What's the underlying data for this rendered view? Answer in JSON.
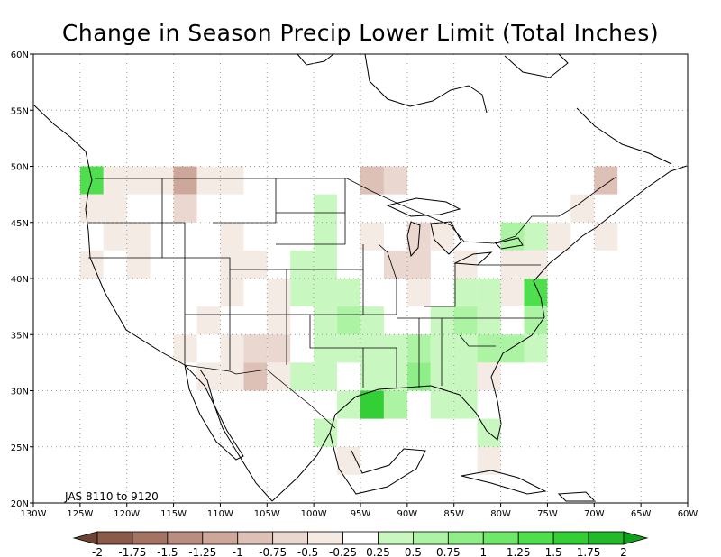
{
  "title": "Change in Season Precip Lower Limit (Total Inches)",
  "period_label": "JAS 8110 to 9120",
  "map": {
    "lon_range": [
      -130,
      -60
    ],
    "lat_range": [
      20,
      60
    ],
    "lon_ticks": [
      {
        "v": -130,
        "label": "130W"
      },
      {
        "v": -125,
        "label": "125W"
      },
      {
        "v": -120,
        "label": "120W"
      },
      {
        "v": -115,
        "label": "115W"
      },
      {
        "v": -110,
        "label": "110W"
      },
      {
        "v": -105,
        "label": "105W"
      },
      {
        "v": -100,
        "label": "100W"
      },
      {
        "v": -95,
        "label": "95W"
      },
      {
        "v": -90,
        "label": "90W"
      },
      {
        "v": -85,
        "label": "85W"
      },
      {
        "v": -80,
        "label": "80W"
      },
      {
        "v": -75,
        "label": "75W"
      },
      {
        "v": -70,
        "label": "70W"
      },
      {
        "v": -65,
        "label": "65W"
      },
      {
        "v": -60,
        "label": "60W"
      }
    ],
    "lat_ticks": [
      {
        "v": 20,
        "label": "20N"
      },
      {
        "v": 25,
        "label": "25N"
      },
      {
        "v": 30,
        "label": "30N"
      },
      {
        "v": 35,
        "label": "35N"
      },
      {
        "v": 40,
        "label": "40N"
      },
      {
        "v": 45,
        "label": "45N"
      },
      {
        "v": 50,
        "label": "50N"
      },
      {
        "v": 55,
        "label": "55N"
      },
      {
        "v": 60,
        "label": "60N"
      }
    ],
    "gridlines": "dotted",
    "cell_size_deg": 2.5
  },
  "colorbar": {
    "labels": [
      "-2",
      "-1.75",
      "-1.5",
      "-1.25",
      "-1",
      "-0.75",
      "-0.5",
      "-0.25",
      "0.25",
      "0.5",
      "0.75",
      "1",
      "1.25",
      "1.5",
      "1.75",
      "2"
    ],
    "colors": [
      "#6b4436",
      "#8a5a4a",
      "#a47363",
      "#b98e80",
      "#cca79a",
      "#ddc1b6",
      "#ead7cf",
      "#f5ebe5",
      "#ffffff",
      "#c8f7c0",
      "#adf3a4",
      "#90ee88",
      "#6fe86a",
      "#4fdf4e",
      "#34cf36",
      "#22b92a",
      "#10a01c"
    ]
  },
  "cells": [
    {
      "lon": -123.75,
      "lat": 48.75,
      "v": 1.3
    },
    {
      "lon": -121.25,
      "lat": 48.75,
      "v": -0.3
    },
    {
      "lon": -118.75,
      "lat": 48.75,
      "v": -0.3
    },
    {
      "lon": -116.25,
      "lat": 48.75,
      "v": -0.3
    },
    {
      "lon": -113.75,
      "lat": 48.75,
      "v": -1.0
    },
    {
      "lon": -111.25,
      "lat": 48.75,
      "v": -0.3
    },
    {
      "lon": -108.75,
      "lat": 48.75,
      "v": -0.3
    },
    {
      "lon": -93.75,
      "lat": 48.75,
      "v": -0.8
    },
    {
      "lon": -91.25,
      "lat": 48.75,
      "v": -0.6
    },
    {
      "lon": -68.75,
      "lat": 48.75,
      "v": -0.8
    },
    {
      "lon": -123.75,
      "lat": 46.25,
      "v": -0.3
    },
    {
      "lon": -121.25,
      "lat": 46.25,
      "v": -0.3
    },
    {
      "lon": -113.75,
      "lat": 46.25,
      "v": -0.6
    },
    {
      "lon": -98.75,
      "lat": 46.25,
      "v": 0.3
    },
    {
      "lon": -71.25,
      "lat": 46.25,
      "v": -0.3
    },
    {
      "lon": -121.25,
      "lat": 43.75,
      "v": -0.3
    },
    {
      "lon": -118.75,
      "lat": 43.75,
      "v": -0.3
    },
    {
      "lon": -108.75,
      "lat": 43.75,
      "v": -0.3
    },
    {
      "lon": -98.75,
      "lat": 43.75,
      "v": 0.3
    },
    {
      "lon": -93.75,
      "lat": 43.75,
      "v": -0.3
    },
    {
      "lon": -88.75,
      "lat": 43.75,
      "v": -0.7
    },
    {
      "lon": -86.25,
      "lat": 43.75,
      "v": -0.3
    },
    {
      "lon": -78.75,
      "lat": 43.75,
      "v": 0.6
    },
    {
      "lon": -76.25,
      "lat": 43.75,
      "v": 0.4
    },
    {
      "lon": -73.75,
      "lat": 43.75,
      "v": -0.3
    },
    {
      "lon": -68.75,
      "lat": 43.75,
      "v": -0.3
    },
    {
      "lon": -123.75,
      "lat": 41.25,
      "v": -0.3
    },
    {
      "lon": -118.75,
      "lat": 41.25,
      "v": -0.3
    },
    {
      "lon": -108.75,
      "lat": 41.25,
      "v": -0.3
    },
    {
      "lon": -106.25,
      "lat": 41.25,
      "v": -0.3
    },
    {
      "lon": -101.25,
      "lat": 41.25,
      "v": 0.3
    },
    {
      "lon": -98.75,
      "lat": 41.25,
      "v": 0.3
    },
    {
      "lon": -91.25,
      "lat": 41.25,
      "v": -0.6
    },
    {
      "lon": -88.75,
      "lat": 41.25,
      "v": -0.6
    },
    {
      "lon": -83.75,
      "lat": 41.25,
      "v": -0.3
    },
    {
      "lon": -78.75,
      "lat": 41.25,
      "v": -0.3
    },
    {
      "lon": -76.25,
      "lat": 41.25,
      "v": -0.4
    },
    {
      "lon": -108.75,
      "lat": 38.75,
      "v": -0.3
    },
    {
      "lon": -101.25,
      "lat": 38.75,
      "v": 0.4
    },
    {
      "lon": -98.75,
      "lat": 38.75,
      "v": 0.4
    },
    {
      "lon": -96.25,
      "lat": 38.75,
      "v": 0.3
    },
    {
      "lon": -88.75,
      "lat": 38.75,
      "v": -0.3
    },
    {
      "lon": -83.75,
      "lat": 38.75,
      "v": 0.5
    },
    {
      "lon": -81.25,
      "lat": 38.75,
      "v": 0.3
    },
    {
      "lon": -78.75,
      "lat": 38.75,
      "v": -0.3
    },
    {
      "lon": -76.25,
      "lat": 38.75,
      "v": 1.3
    },
    {
      "lon": -103.75,
      "lat": 38.75,
      "v": -0.3
    },
    {
      "lon": -98.75,
      "lat": 36.25,
      "v": 0.4
    },
    {
      "lon": -96.25,
      "lat": 36.25,
      "v": 0.6
    },
    {
      "lon": -93.75,
      "lat": 36.25,
      "v": 0.3
    },
    {
      "lon": -86.25,
      "lat": 36.25,
      "v": 0.4
    },
    {
      "lon": -83.75,
      "lat": 36.25,
      "v": 0.6
    },
    {
      "lon": -81.25,
      "lat": 36.25,
      "v": 0.3
    },
    {
      "lon": -76.25,
      "lat": 36.25,
      "v": 0.6
    },
    {
      "lon": -111.25,
      "lat": 36.25,
      "v": -0.3
    },
    {
      "lon": -103.75,
      "lat": 36.25,
      "v": -0.3
    },
    {
      "lon": -91.25,
      "lat": 33.75,
      "v": 0.5
    },
    {
      "lon": -88.75,
      "lat": 33.75,
      "v": 0.6
    },
    {
      "lon": -86.25,
      "lat": 33.75,
      "v": 0.5
    },
    {
      "lon": -83.75,
      "lat": 33.75,
      "v": 0.3
    },
    {
      "lon": -81.25,
      "lat": 33.75,
      "v": 0.6
    },
    {
      "lon": -78.75,
      "lat": 33.75,
      "v": 0.6
    },
    {
      "lon": -76.25,
      "lat": 33.75,
      "v": 0.3
    },
    {
      "lon": -113.75,
      "lat": 33.75,
      "v": -0.3
    },
    {
      "lon": -108.75,
      "lat": 33.75,
      "v": -0.3
    },
    {
      "lon": -106.25,
      "lat": 33.75,
      "v": -0.6
    },
    {
      "lon": -103.75,
      "lat": 33.75,
      "v": -0.6
    },
    {
      "lon": -98.75,
      "lat": 33.75,
      "v": 0.3
    },
    {
      "lon": -96.25,
      "lat": 33.75,
      "v": 0.3
    },
    {
      "lon": -93.75,
      "lat": 33.75,
      "v": 0.3
    },
    {
      "lon": -88.75,
      "lat": 31.25,
      "v": 1.0
    },
    {
      "lon": -86.25,
      "lat": 31.25,
      "v": 0.4
    },
    {
      "lon": -83.75,
      "lat": 31.25,
      "v": 0.3
    },
    {
      "lon": -81.25,
      "lat": 31.25,
      "v": -0.3
    },
    {
      "lon": -106.25,
      "lat": 31.25,
      "v": -0.8
    },
    {
      "lon": -103.75,
      "lat": 31.25,
      "v": -0.3
    },
    {
      "lon": -108.75,
      "lat": 31.25,
      "v": -0.3
    },
    {
      "lon": -111.25,
      "lat": 31.25,
      "v": -0.3
    },
    {
      "lon": -101.25,
      "lat": 31.25,
      "v": 0.3
    },
    {
      "lon": -98.75,
      "lat": 31.25,
      "v": 0.3
    },
    {
      "lon": -93.75,
      "lat": 31.25,
      "v": 0.3
    },
    {
      "lon": -91.25,
      "lat": 31.25,
      "v": 0.5
    },
    {
      "lon": -93.75,
      "lat": 28.75,
      "v": 1.6
    },
    {
      "lon": -91.25,
      "lat": 28.75,
      "v": 0.7
    },
    {
      "lon": -96.25,
      "lat": 28.75,
      "v": 0.3
    },
    {
      "lon": -86.25,
      "lat": 28.75,
      "v": 0.3
    },
    {
      "lon": -83.75,
      "lat": 28.75,
      "v": 0.3
    },
    {
      "lon": -81.25,
      "lat": 26.25,
      "v": 0.4
    },
    {
      "lon": -98.75,
      "lat": 26.25,
      "v": 0.3
    },
    {
      "lon": -81.25,
      "lat": 23.75,
      "v": -0.3
    },
    {
      "lon": -96.25,
      "lat": 23.75,
      "v": -0.3
    }
  ]
}
